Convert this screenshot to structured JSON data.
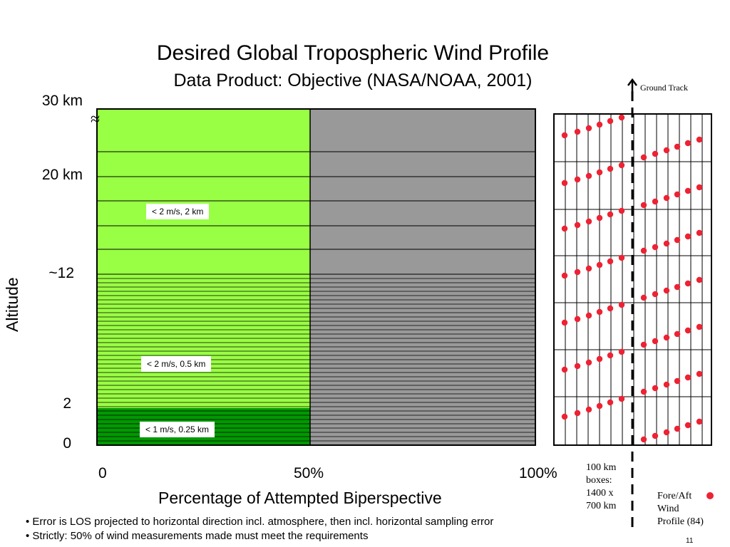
{
  "slide": {
    "title": "Desired Global Tropospheric Wind Profile",
    "subtitle": "Data Product: Objective (NASA/NOAA, 2001)",
    "page_number": "11"
  },
  "chart": {
    "y_axis_title": "Altitude",
    "x_axis_title": "Percentage of Attempted Biperspective",
    "y_labels": [
      "30 km",
      "20 km",
      "~12",
      "2",
      "0"
    ],
    "x_labels": [
      "0",
      "50%",
      "100%"
    ],
    "break_symbol": "≈",
    "regions": [
      {
        "label": "< 2 m/s, 2 km",
        "color": "#99ff44"
      },
      {
        "label": "< 2 m/s, 0.5 km",
        "color": "#99ff44"
      },
      {
        "label": "< 1 m/s, 0.25 km",
        "color": "#009900"
      }
    ],
    "unmet_color": "#999999"
  },
  "sampling_diagram": {
    "ground_track_label": "Ground Track",
    "box_caption": [
      "100 km",
      "boxes:",
      "1400 x",
      "700 km"
    ],
    "legend": [
      "Fore/Aft",
      "Wind",
      "Profile (84)"
    ],
    "dot_color": "#ee2233"
  },
  "notes": [
    "• Error is LOS projected to horizontal direction incl. atmosphere, then incl. horizontal sampling error",
    "• Strictly: 50% of wind measurements made must meet the requirements"
  ]
}
